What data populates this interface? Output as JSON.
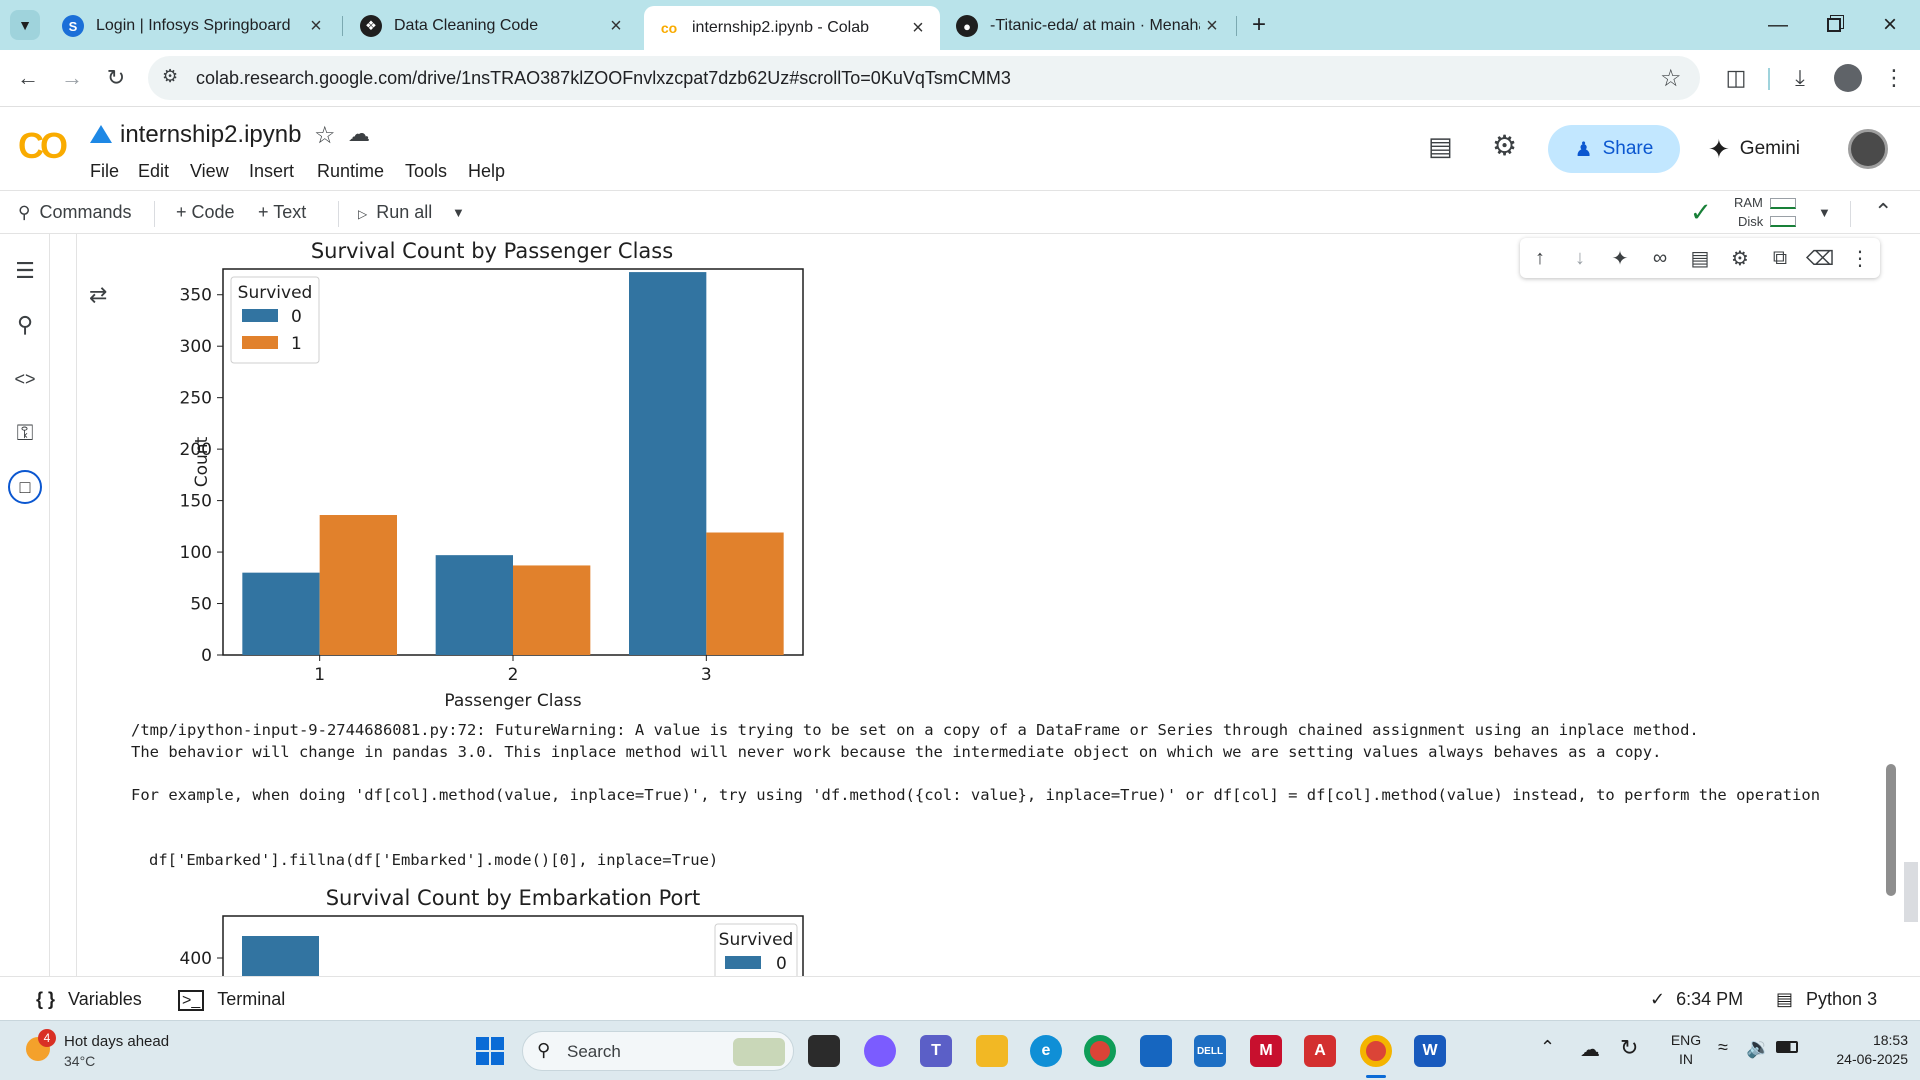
{
  "browser": {
    "tabs": [
      {
        "title": "Login | Infosys Springboard",
        "active": false
      },
      {
        "title": "Data Cleaning Code",
        "active": false
      },
      {
        "title": "internship2.ipynb - Colab",
        "active": true
      },
      {
        "title": "-Titanic-eda/ at main · Menahal",
        "active": false
      }
    ],
    "url": "colab.research.google.com/drive/1nsTRAO387klZOOFnvlxzcpat7dzb62Uz#scrollTo=0KuVqTsmCMM3"
  },
  "colab": {
    "logo": "CO",
    "notebook_title": "internship2.ipynb",
    "menu": [
      "File",
      "Edit",
      "View",
      "Insert",
      "Runtime",
      "Tools",
      "Help"
    ],
    "share_label": "Share",
    "gemini_label": "Gemini"
  },
  "toolbar": {
    "commands_label": "Commands",
    "code_label": "+ Code",
    "text_label": "+ Text",
    "runall_label": "Run all",
    "ram_label": "RAM",
    "disk_label": "Disk"
  },
  "output": {
    "warning_line1": "/tmp/ipython-input-9-2744686081.py:72: FutureWarning: A value is trying to be set on a copy of a DataFrame or Series through chained assignment using an inplace method.",
    "warning_line2": "The behavior will change in pandas 3.0. This inplace method will never work because the intermediate object on which we are setting values always behaves as a copy.",
    "warning_line3": "For example, when doing 'df[col].method(value, inplace=True)', try using 'df.method({col: value}, inplace=True)' or df[col] = df[col].method(value) instead, to perform the operation",
    "code_line": "df['Embarked'].fillna(df['Embarked'].mode()[0], inplace=True)"
  },
  "chart_data": [
    {
      "type": "bar",
      "title": "Survival Count by Passenger Class",
      "xlabel": "Passenger Class",
      "ylabel": "Count",
      "categories": [
        "1",
        "2",
        "3"
      ],
      "series": [
        {
          "name": "0",
          "values": [
            80,
            97,
            372
          ],
          "color": "#3274a1"
        },
        {
          "name": "1",
          "values": [
            136,
            87,
            119
          ],
          "color": "#e1812c"
        }
      ],
      "ylim": [
        0,
        375
      ],
      "yticks": [
        "0",
        "50",
        "100",
        "150",
        "200",
        "250",
        "300",
        "350"
      ],
      "legend_title": "Survived",
      "legend_position": "top-left"
    },
    {
      "type": "bar",
      "title": "Survival Count by Embarkation Port",
      "legend_title": "Survived",
      "legend_position": "top-right",
      "yticks_visible": [
        "400"
      ],
      "series": [
        {
          "name": "0",
          "color": "#3274a1"
        }
      ]
    }
  ],
  "statusbar": {
    "variables_label": "Variables",
    "terminal_label": "Terminal",
    "time_label": "6:34 PM",
    "runtime_label": "Python 3"
  },
  "taskbar": {
    "weather_title": "Hot days ahead",
    "weather_temp": "34°C",
    "weather_badge": "4",
    "search_label": "Search",
    "lang_line1": "ENG",
    "lang_line2": "IN",
    "clock_time": "18:53",
    "clock_date": "24-06-2025"
  },
  "colors": {
    "tabstrip": "#b9e3ea",
    "share_bg": "#c2e7ff",
    "bar_blue": "#3274a1",
    "bar_orange": "#e1812c"
  }
}
